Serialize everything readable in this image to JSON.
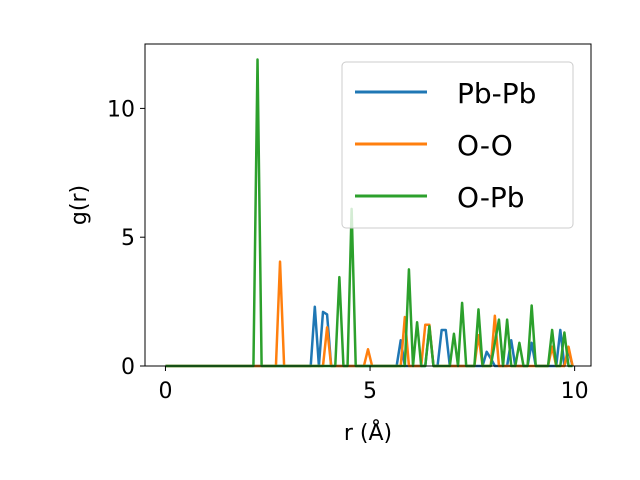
{
  "chart_data": {
    "type": "line",
    "xlabel": "r (Å)",
    "ylabel": "g(r)",
    "xlim": [
      -0.5,
      10.4
    ],
    "ylim": [
      0,
      12.5
    ],
    "xticks": [
      0,
      5,
      10
    ],
    "yticks": [
      0,
      5,
      10
    ],
    "xtick_labels": [
      "0",
      "5",
      "10"
    ],
    "ytick_labels": [
      "0",
      "5",
      "10"
    ],
    "grid": false,
    "legend_position": "top-right",
    "series": [
      {
        "name": "Pb-Pb",
        "color": "#1f77b4",
        "x": [
          0,
          3.55,
          3.65,
          3.75,
          3.85,
          3.95,
          4.05,
          5.65,
          5.75,
          5.85,
          6.35,
          6.45,
          6.55,
          6.65,
          6.75,
          6.85,
          6.95,
          7.75,
          7.85,
          7.95,
          8.05,
          8.35,
          8.45,
          8.55,
          8.85,
          8.95,
          9.05,
          9.55,
          9.65,
          9.75,
          9.85,
          9.95
        ],
        "values": [
          0,
          0,
          2.3,
          0,
          2.1,
          2.0,
          0,
          0,
          1.0,
          0,
          0,
          1.5,
          0,
          0,
          1.4,
          1.4,
          0,
          0,
          0.55,
          0.3,
          0,
          0,
          1.0,
          0,
          0,
          0.9,
          0,
          0,
          1.4,
          0,
          0.6,
          0
        ]
      },
      {
        "name": "O-O",
        "color": "#ff7f0e",
        "x": [
          0,
          2.7,
          2.8,
          2.9,
          3.85,
          3.95,
          4.05,
          4.85,
          4.95,
          5.05,
          5.75,
          5.85,
          5.95,
          6.25,
          6.35,
          6.45,
          6.55,
          7.55,
          7.65,
          7.75,
          7.95,
          8.05,
          8.15,
          9.35,
          9.45,
          9.55,
          9.75,
          9.85,
          9.95
        ],
        "values": [
          0,
          0,
          4.05,
          0,
          0,
          1.5,
          0,
          0,
          0.65,
          0,
          0,
          1.9,
          0,
          0,
          1.6,
          1.6,
          0,
          0,
          1.2,
          0,
          0,
          1.95,
          0,
          0,
          0.75,
          0,
          0,
          0.75,
          0
        ]
      },
      {
        "name": "O-Pb",
        "color": "#2ca02c",
        "x": [
          0,
          2.15,
          2.25,
          2.35,
          4.15,
          4.25,
          4.35,
          4.45,
          4.55,
          4.65,
          5.85,
          5.95,
          6.05,
          6.15,
          6.25,
          6.35,
          6.45,
          6.55,
          6.65,
          6.95,
          7.05,
          7.15,
          7.25,
          7.35,
          7.55,
          7.65,
          7.75,
          7.85,
          7.95,
          8.15,
          8.25,
          8.35,
          8.45,
          8.55,
          8.65,
          8.75,
          8.85,
          8.95,
          9.05,
          9.15,
          9.25,
          9.35,
          9.45,
          9.55,
          9.65,
          9.75,
          9.85,
          9.95
        ],
        "values": [
          0,
          0,
          11.9,
          0,
          0,
          3.45,
          0,
          0,
          6.1,
          0,
          0,
          3.75,
          0,
          1.7,
          0,
          0,
          1.55,
          0,
          0,
          0,
          1.25,
          0,
          2.45,
          0,
          0,
          2.2,
          0,
          0,
          0,
          1.8,
          0,
          1.8,
          0,
          0,
          0.9,
          0,
          0,
          2.35,
          0,
          0,
          0,
          0,
          1.4,
          0,
          0,
          1.3,
          0,
          0
        ]
      }
    ]
  }
}
